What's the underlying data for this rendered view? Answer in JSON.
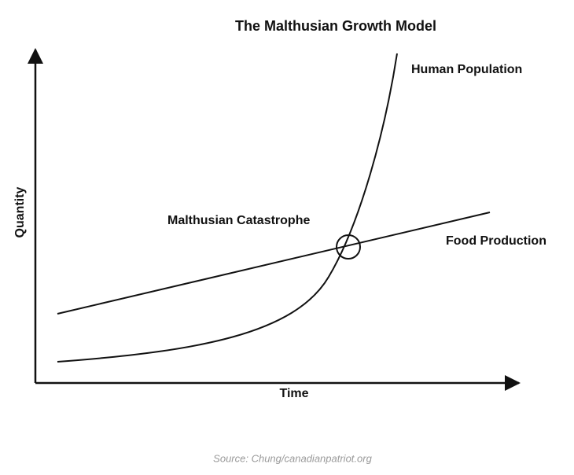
{
  "title": "The Malthusian Growth Model",
  "axes": {
    "x_label": "Time",
    "y_label": "Quantity"
  },
  "curves": [
    {
      "label": "Human Population"
    },
    {
      "label": "Food Production"
    }
  ],
  "annotation": "Malthusian Catastrophe",
  "source": "Source: Chung/canadianpatriot.org"
}
